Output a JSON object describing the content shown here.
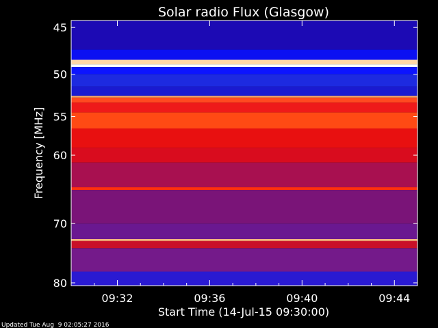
{
  "chart_data": {
    "type": "heatmap",
    "title": "Solar radio Flux (Glasgow)",
    "xlabel": "Start Time (14-Jul-15 09:30:00)",
    "ylabel": "Frequency [MHz]",
    "footer": "Updated Tue Aug  9 02:05:27 2016",
    "ylim": [
      45,
      80
    ],
    "y_scale": "log",
    "y_ticks": [
      45,
      50,
      55,
      60,
      70,
      80
    ],
    "y_tick_labels": [
      "45",
      "50",
      "55",
      "60",
      "70",
      "80"
    ],
    "x_tick_labels": [
      "09:32",
      "09:36",
      "09:40",
      "09:44"
    ],
    "x_tick_minutes": [
      32,
      36,
      40,
      44
    ],
    "x_range_minutes": [
      30.0,
      45.0
    ],
    "colormap": [
      "#000000",
      "#0000ff",
      "#ff0000",
      "#ffff00",
      "#ffffff"
    ],
    "bands": [
      {
        "from": 44.3,
        "to": 47.3,
        "color": "#1c0ab4"
      },
      {
        "from": 47.3,
        "to": 48.4,
        "color": "#0b10f2"
      },
      {
        "from": 48.4,
        "to": 48.9,
        "color": "#ffd7a8"
      },
      {
        "from": 48.9,
        "to": 49.2,
        "color": "#ffffff"
      },
      {
        "from": 49.2,
        "to": 50.0,
        "color": "#0c14ff"
      },
      {
        "from": 50.0,
        "to": 51.4,
        "color": "#1d2ae0"
      },
      {
        "from": 51.4,
        "to": 52.5,
        "color": "#1a1ad0"
      },
      {
        "from": 52.5,
        "to": 52.7,
        "color": "#ffaa66"
      },
      {
        "from": 52.7,
        "to": 53.3,
        "color": "#ff4a20"
      },
      {
        "from": 53.3,
        "to": 54.5,
        "color": "#ee1a1a"
      },
      {
        "from": 54.5,
        "to": 56.5,
        "color": "#ff4a14"
      },
      {
        "from": 56.5,
        "to": 59.0,
        "color": "#e81010"
      },
      {
        "from": 59.0,
        "to": 61.0,
        "color": "#d90c1e"
      },
      {
        "from": 61.0,
        "to": 64.5,
        "color": "#a81050"
      },
      {
        "from": 64.5,
        "to": 64.9,
        "color": "#ff3010"
      },
      {
        "from": 64.9,
        "to": 70.0,
        "color": "#7a1478"
      },
      {
        "from": 70.0,
        "to": 72.5,
        "color": "#6a1890"
      },
      {
        "from": 72.5,
        "to": 72.8,
        "color": "#ffc080"
      },
      {
        "from": 72.8,
        "to": 74.0,
        "color": "#c81028"
      },
      {
        "from": 74.0,
        "to": 78.0,
        "color": "#741a8a"
      },
      {
        "from": 78.0,
        "to": 80.5,
        "color": "#2a1ad2"
      }
    ]
  }
}
